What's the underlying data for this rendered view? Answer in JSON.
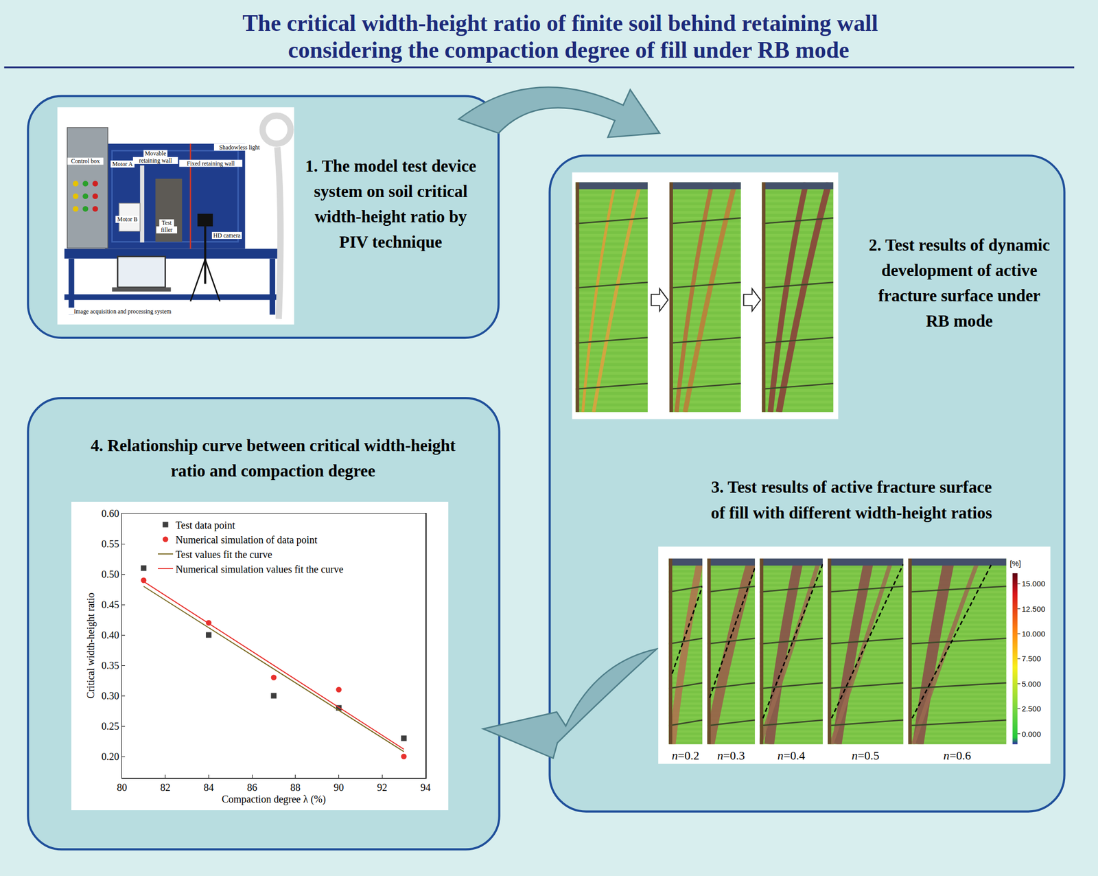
{
  "diagram": {
    "title_lines": [
      "The critical width-height ratio of finite soil behind retaining wall",
      "considering the compaction degree of fill under RB mode"
    ],
    "panels": [
      {
        "caption_lines": [
          "1. The model test device",
          "system on soil critical",
          "width-height ratio by",
          "PIV technique"
        ],
        "photo_labels": [
          [
            "Control box"
          ],
          [
            "Motor A"
          ],
          [
            "Movable",
            "retaining wall"
          ],
          [
            "Fixed retaining wall"
          ],
          [
            "Shadowless light"
          ],
          [
            "Motor B"
          ],
          [
            "Test",
            "filler"
          ],
          [
            "HD camera"
          ],
          [
            "Image acquisition and processing system"
          ]
        ]
      },
      {
        "caption_lines": [
          "2. Test results of dynamic",
          "development of active",
          "fracture surface under",
          "RB mode"
        ]
      },
      {
        "caption_lines": [
          "3.  Test results of active fracture surface",
          "of fill with different width-height ratios"
        ],
        "strip_labels": [
          "n=0.2",
          "n=0.3",
          "n=0.4",
          "n=0.5",
          "n=0.6"
        ],
        "colorbar": {
          "label": "[%]",
          "range": [
            0,
            15
          ],
          "ticks": [
            {
              "value": 15,
              "label": "15.000"
            },
            {
              "value": 12.5,
              "label": "12.500"
            },
            {
              "value": 10,
              "label": "10.000"
            },
            {
              "value": 7.5,
              "label": "7.500"
            },
            {
              "value": 5,
              "label": "5.000"
            },
            {
              "value": 2.5,
              "label": "2.500"
            },
            {
              "value": 0,
              "label": "0.000"
            }
          ]
        }
      },
      {
        "caption_lines": [
          "4.  Relationship curve between critical width-height",
          "ratio and compaction degree"
        ]
      }
    ]
  },
  "chart_data": {
    "type": "scatter",
    "x_label": "Compaction degree λ (%)",
    "y_label": "Critical width-height ratio",
    "xlim": [
      80,
      94
    ],
    "xticks": [
      80,
      82,
      84,
      86,
      88,
      90,
      92,
      94
    ],
    "ylim": [
      0.165,
      0.6
    ],
    "yticks": [
      {
        "value": 0.2,
        "label": "0.20"
      },
      {
        "value": 0.25,
        "label": "0.25"
      },
      {
        "value": 0.3,
        "label": "0.30"
      },
      {
        "value": 0.35,
        "label": "0.35"
      },
      {
        "value": 0.4,
        "label": "0.40"
      },
      {
        "value": 0.45,
        "label": "0.45"
      },
      {
        "value": 0.5,
        "label": "0.50"
      },
      {
        "value": 0.55,
        "label": "0.55"
      },
      {
        "value": 0.6,
        "label": "0.60"
      }
    ],
    "grid": false,
    "legend": "upper left",
    "series": [
      {
        "name": "Test data point",
        "type": "scatter",
        "marker": "square",
        "color": "#3d3d3d",
        "x": [
          81,
          84,
          87,
          90,
          93
        ],
        "values": [
          0.51,
          0.4,
          0.3,
          0.28,
          0.23
        ]
      },
      {
        "name": "Numerical simulation of data point",
        "type": "scatter",
        "marker": "circle",
        "color": "#e8302c",
        "x": [
          81,
          84,
          87,
          90,
          93
        ],
        "values": [
          0.49,
          0.42,
          0.33,
          0.31,
          0.2
        ]
      },
      {
        "name": "Test values fit the curve",
        "type": "line",
        "line_style": "solid",
        "color": "#7a6a22",
        "x": [
          81,
          93
        ],
        "values": [
          0.48,
          0.208
        ]
      },
      {
        "name": "Numerical simulation values fit the curve",
        "type": "line",
        "line_style": "solid",
        "color": "#e8302c",
        "x": [
          81,
          93
        ],
        "values": [
          0.488,
          0.212
        ]
      }
    ]
  }
}
